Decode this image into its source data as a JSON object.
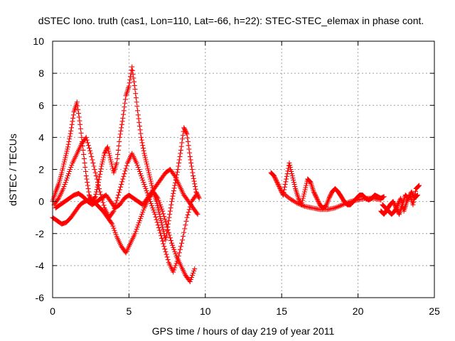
{
  "chart_data": {
    "type": "scatter",
    "title": "dSTEC Iono. truth (cas1, Lon=110, Lat=-66, h=22): STEC-STEC_elemax in phase cont.",
    "xlabel": "GPS time / hours of day 219 of year 2011",
    "ylabel": "dSTEC  / TECUs",
    "xlim": [
      0,
      25
    ],
    "ylim": [
      -6,
      10
    ],
    "xticks": [
      0,
      5,
      10,
      15,
      20,
      25
    ],
    "yticks": [
      -6,
      -4,
      -2,
      0,
      2,
      4,
      6,
      8,
      10
    ],
    "grid": true,
    "marker": "plus",
    "color": "#ff0000",
    "series": [
      {
        "x": [
          0.0,
          0.2,
          0.4,
          0.6,
          0.8,
          1.0,
          1.2,
          1.4,
          1.6,
          1.8,
          2.0,
          2.2,
          2.4,
          2.6,
          2.8,
          3.0,
          3.2,
          3.4,
          3.6,
          3.8,
          4.0,
          4.2,
          4.4,
          4.6,
          4.8,
          5.0,
          5.2,
          5.4,
          5.6,
          5.8,
          6.0,
          6.2,
          6.4,
          6.6,
          6.8,
          7.0,
          7.2,
          7.4,
          7.6,
          7.8,
          8.0,
          8.2,
          8.4,
          8.6,
          8.8,
          9.0,
          9.2,
          9.4,
          9.6
        ],
        "y": [
          0.0,
          0.6,
          1.1,
          1.8,
          2.6,
          3.4,
          4.4,
          5.6,
          6.2,
          4.8,
          3.2,
          1.6,
          0.4,
          0.0,
          0.3,
          1.2,
          2.2,
          3.0,
          3.4,
          2.6,
          1.8,
          2.4,
          4.0,
          5.2,
          6.6,
          7.2,
          8.4,
          7.0,
          5.4,
          4.0,
          3.0,
          2.2,
          1.4,
          0.6,
          0.0,
          -0.8,
          -1.6,
          -2.4,
          -1.2,
          0.0,
          1.0,
          2.0,
          3.2,
          4.6,
          4.2,
          2.8,
          1.6,
          0.6,
          0.2
        ]
      },
      {
        "x": [
          0.1,
          0.4,
          0.7,
          1.0,
          1.3,
          1.6,
          1.9,
          2.2,
          2.5,
          2.8,
          3.1,
          3.4,
          3.7,
          4.0,
          4.3,
          4.6,
          4.9,
          5.2,
          5.5,
          5.8,
          6.1,
          6.4,
          6.7,
          7.0,
          7.3,
          7.6,
          7.9,
          8.2,
          8.5,
          8.8,
          9.1,
          9.4
        ],
        "y": [
          -0.2,
          0.2,
          0.8,
          1.6,
          2.4,
          3.0,
          3.6,
          4.0,
          3.0,
          1.8,
          0.6,
          -0.4,
          -1.0,
          -0.6,
          0.4,
          1.4,
          2.4,
          3.0,
          2.4,
          1.6,
          0.8,
          0.0,
          -0.8,
          -1.8,
          -2.8,
          -3.8,
          -4.4,
          -3.6,
          -2.4,
          -1.0,
          0.0,
          0.4
        ]
      },
      {
        "x": [
          0.0,
          0.3,
          0.6,
          0.9,
          1.2,
          1.5,
          1.8,
          2.1,
          2.4,
          2.7,
          3.0,
          3.3,
          3.6,
          3.9,
          4.2,
          4.5,
          4.8,
          5.1,
          5.4,
          5.7,
          6.0,
          6.3,
          6.6,
          6.9,
          7.2,
          7.5,
          7.8,
          8.1,
          8.4,
          8.7,
          9.0,
          9.3
        ],
        "y": [
          -1.0,
          -1.2,
          -1.4,
          -1.3,
          -1.0,
          -0.6,
          -0.2,
          0.0,
          0.1,
          0.0,
          -0.3,
          -0.6,
          -1.0,
          -1.4,
          -2.2,
          -2.8,
          -3.2,
          -2.6,
          -2.0,
          -1.2,
          -0.4,
          0.2,
          0.6,
          0.2,
          -0.6,
          -1.6,
          -2.6,
          -3.4,
          -4.0,
          -4.6,
          -5.0,
          -4.2
        ]
      },
      {
        "x": [
          0.2,
          0.5,
          0.8,
          1.1,
          1.4,
          1.7,
          2.0,
          2.3,
          2.6,
          2.9,
          3.2,
          3.5,
          3.8,
          4.1,
          4.4,
          4.7,
          5.0,
          5.3,
          5.6,
          5.9,
          6.2,
          6.5,
          6.8,
          7.1,
          7.4,
          7.7,
          8.0,
          8.3,
          8.6,
          8.9,
          9.2,
          9.5
        ],
        "y": [
          -0.4,
          -0.2,
          0.0,
          0.2,
          0.4,
          0.5,
          0.3,
          0.0,
          -0.2,
          0.0,
          0.2,
          0.4,
          0.0,
          -0.4,
          -0.2,
          0.2,
          0.4,
          0.2,
          0.0,
          -0.2,
          0.2,
          0.6,
          1.0,
          1.4,
          1.8,
          2.0,
          1.6,
          1.0,
          0.4,
          0.0,
          -0.4,
          -0.8
        ]
      },
      {
        "x": [
          14.3,
          14.5,
          14.7,
          14.9,
          15.1,
          15.3,
          15.5,
          15.7,
          15.9,
          16.1,
          16.3,
          16.5,
          16.7,
          16.9,
          17.1,
          17.3,
          17.5,
          17.7,
          17.9,
          18.1,
          18.3,
          18.5,
          18.7,
          18.9,
          19.1,
          19.3,
          19.5,
          19.7,
          19.9,
          20.1,
          20.3,
          20.5,
          20.7,
          20.9,
          21.1,
          21.3,
          21.5,
          21.7
        ],
        "y": [
          1.8,
          1.6,
          1.2,
          0.8,
          0.4,
          1.4,
          2.4,
          1.6,
          0.8,
          0.2,
          -0.2,
          0.6,
          1.4,
          1.2,
          0.6,
          0.2,
          -0.2,
          -0.4,
          -0.3,
          0.2,
          0.6,
          0.8,
          0.6,
          0.3,
          0.0,
          -0.2,
          -0.2,
          0.0,
          0.2,
          0.4,
          0.4,
          0.2,
          0.1,
          0.2,
          0.4,
          0.3,
          0.2,
          0.3
        ]
      },
      {
        "x": [
          15.0,
          15.5,
          16.0,
          16.5,
          17.0,
          17.5,
          18.0,
          18.5,
          19.0,
          19.5,
          20.0,
          20.5,
          21.0,
          21.5
        ],
        "y": [
          0.6,
          0.2,
          -0.1,
          -0.3,
          -0.4,
          -0.5,
          -0.5,
          -0.4,
          -0.2,
          0.0,
          0.1,
          0.2,
          0.2,
          0.1
        ]
      },
      {
        "x": [
          21.6,
          21.8,
          22.0,
          22.2,
          22.4,
          22.6,
          22.8,
          23.0,
          23.2,
          23.4,
          23.6,
          23.8,
          24.0
        ],
        "y": [
          -0.2,
          -0.4,
          -0.6,
          -0.8,
          -0.6,
          -0.2,
          0.2,
          -0.6,
          0.0,
          0.4,
          -0.2,
          0.8,
          1.0
        ]
      },
      {
        "x": [
          21.5,
          21.7,
          21.9,
          22.1,
          22.3,
          22.5,
          22.7,
          22.9,
          23.1,
          23.3,
          23.5,
          23.7,
          23.9
        ],
        "y": [
          -0.6,
          -0.8,
          -0.5,
          -0.2,
          0.0,
          -0.4,
          -0.8,
          -0.2,
          0.4,
          0.2,
          0.6,
          0.2,
          0.4
        ]
      }
    ]
  }
}
